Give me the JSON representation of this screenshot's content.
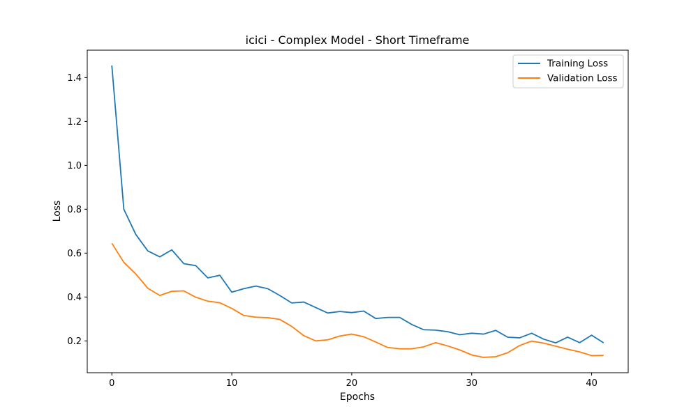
{
  "chart_data": {
    "type": "line",
    "title": "icici - Complex Model - Short Timeframe",
    "xlabel": "Epochs",
    "ylabel": "Loss",
    "xlim": [
      -2.05,
      43.05
    ],
    "ylim": [
      0.055,
      1.525
    ],
    "x_ticks": [
      0,
      10,
      20,
      30,
      40
    ],
    "y_ticks": [
      0.2,
      0.4,
      0.6,
      0.8,
      1.0,
      1.2,
      1.4
    ],
    "grid": false,
    "legend_position": "top-right",
    "x": [
      0,
      1,
      2,
      3,
      4,
      5,
      6,
      7,
      8,
      9,
      10,
      11,
      12,
      13,
      14,
      15,
      16,
      17,
      18,
      19,
      20,
      21,
      22,
      23,
      24,
      25,
      26,
      27,
      28,
      29,
      30,
      31,
      32,
      33,
      34,
      35,
      36,
      37,
      38,
      39,
      40,
      41
    ],
    "series": [
      {
        "name": "Training Loss",
        "color": "#1f77b4",
        "values": [
          1.455,
          0.8,
          0.685,
          0.61,
          0.583,
          0.615,
          0.552,
          0.543,
          0.487,
          0.499,
          0.422,
          0.438,
          0.45,
          0.438,
          0.407,
          0.373,
          0.377,
          0.352,
          0.327,
          0.334,
          0.329,
          0.336,
          0.302,
          0.307,
          0.307,
          0.275,
          0.251,
          0.249,
          0.242,
          0.228,
          0.235,
          0.231,
          0.248,
          0.217,
          0.214,
          0.235,
          0.208,
          0.191,
          0.217,
          0.192,
          0.226,
          0.191
        ]
      },
      {
        "name": "Validation Loss",
        "color": "#ff7f0e",
        "values": [
          0.645,
          0.558,
          0.505,
          0.44,
          0.407,
          0.426,
          0.428,
          0.399,
          0.381,
          0.374,
          0.348,
          0.316,
          0.308,
          0.306,
          0.298,
          0.266,
          0.224,
          0.2,
          0.205,
          0.222,
          0.231,
          0.219,
          0.195,
          0.17,
          0.164,
          0.164,
          0.173,
          0.192,
          0.177,
          0.159,
          0.136,
          0.125,
          0.128,
          0.146,
          0.179,
          0.199,
          0.19,
          0.176,
          0.162,
          0.15,
          0.133,
          0.134
        ]
      }
    ]
  }
}
